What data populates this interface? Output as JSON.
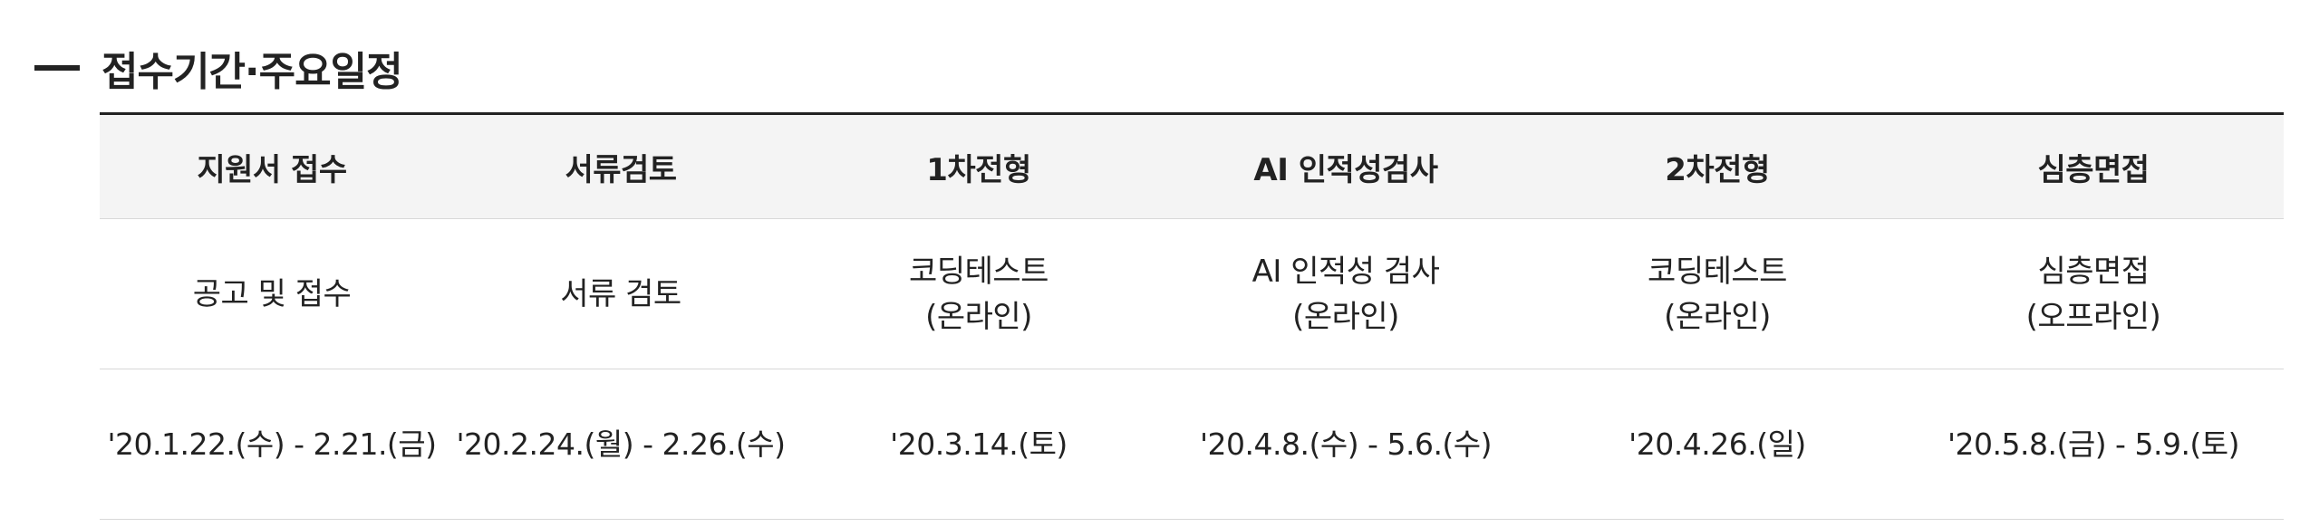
{
  "section": {
    "title": "접수기간·주요일정"
  },
  "schedule": {
    "columns": [
      {
        "header": "지원서 접수",
        "type_lines": [
          "공고 및 접수"
        ],
        "date": "'20.1.22.(수) - 2.21.(금)"
      },
      {
        "header": "서류검토",
        "type_lines": [
          "서류 검토"
        ],
        "date": "'20.2.24.(월) - 2.26.(수)"
      },
      {
        "header": "1차전형",
        "type_lines": [
          "코딩테스트",
          "(온라인)"
        ],
        "date": "'20.3.14.(토)"
      },
      {
        "header": "AI 인적성검사",
        "type_lines": [
          "AI 인적성 검사",
          "(온라인)"
        ],
        "date": "'20.4.8.(수) - 5.6.(수)"
      },
      {
        "header": "2차전형",
        "type_lines": [
          "코딩테스트",
          "(온라인)"
        ],
        "date": "'20.4.26.(일)"
      },
      {
        "header": "심층면접",
        "type_lines": [
          "심층면접",
          "(오프라인)"
        ],
        "date": "'20.5.8.(금) - 5.9.(토)"
      }
    ]
  }
}
